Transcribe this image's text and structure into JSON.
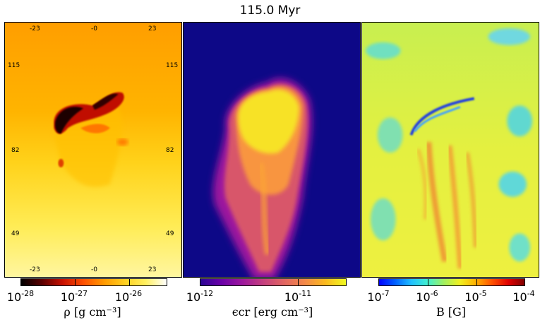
{
  "title": "115.0 Myr",
  "panel1": {
    "top_ticks": [
      "-23",
      "-0",
      "23"
    ],
    "bottom_ticks": [
      "-23",
      "-0",
      "23"
    ],
    "left_ticks": [
      "115",
      "82",
      "49"
    ],
    "right_ticks": [
      "115",
      "82",
      "49"
    ]
  },
  "colorbars": [
    {
      "base": "10",
      "exps": [
        "-28",
        "-27",
        "-26"
      ],
      "label": "ρ [g cm⁻³]"
    },
    {
      "base": "10",
      "exps": [
        "-12",
        "-11"
      ],
      "label": "ϵcr [erg cm⁻³]"
    },
    {
      "base": "10",
      "exps": [
        "-7",
        "-6",
        "-5",
        "-4"
      ],
      "label": "B [G]"
    }
  ],
  "colors": {
    "density_bg": "#ffa300",
    "cr_bg": "#0d0887",
    "b_bg": "#e8f040"
  }
}
